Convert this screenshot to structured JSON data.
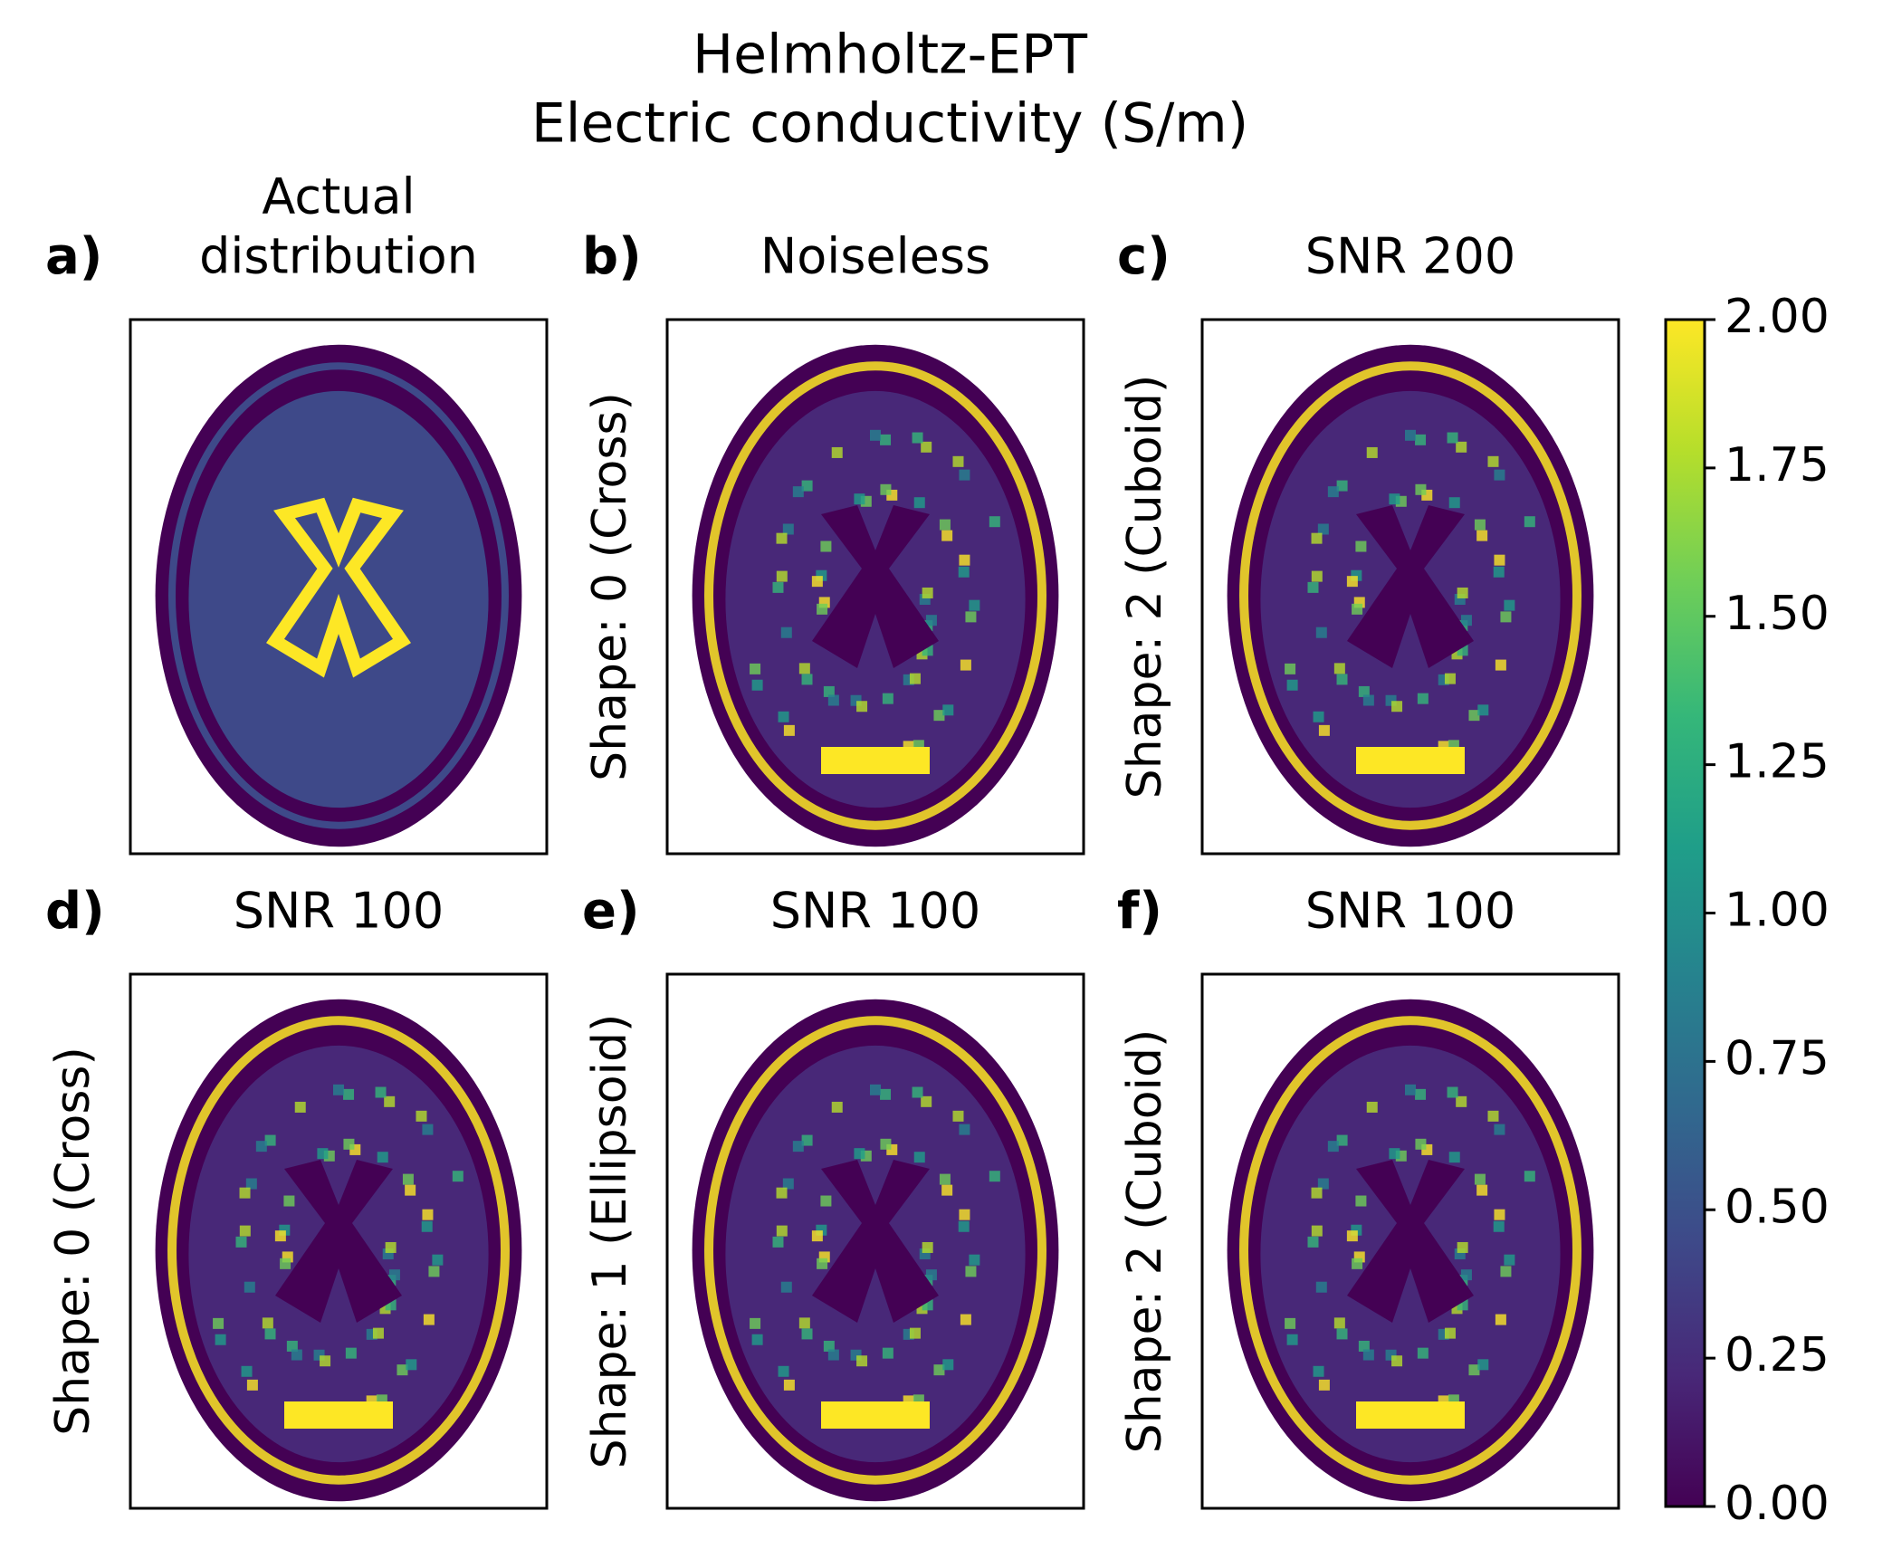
{
  "figure": {
    "title": "Helmholtz-EPT",
    "subtitle": "Electric conductivity (S/m)",
    "panels": [
      {
        "letter": "a)",
        "title": [
          "Actual",
          "distribution"
        ]
      },
      {
        "letter": "b)",
        "title": [
          "Noiseless"
        ],
        "ylabel": "Shape: 0 (Cross)"
      },
      {
        "letter": "c)",
        "title": [
          "SNR 200"
        ],
        "ylabel": "Shape: 2 (Cuboid)"
      },
      {
        "letter": "d)",
        "title": [
          "SNR 100"
        ],
        "ylabel": "Shape: 0 (Cross)"
      },
      {
        "letter": "e)",
        "title": [
          "SNR 100"
        ],
        "ylabel": "Shape: 1 (Ellipsoid)"
      },
      {
        "letter": "f)",
        "title": [
          "SNR 100"
        ],
        "ylabel": "Shape: 2 (Cuboid)"
      }
    ],
    "colorbar": {
      "colormap": "viridis",
      "lim": [
        0,
        2
      ],
      "ticks": [
        {
          "value": 0,
          "label": "0.00"
        },
        0.25,
        {
          "value": 0.5,
          "label": "0.50"
        },
        0.75,
        {
          "value": 1,
          "label": "1.00"
        },
        1.25,
        {
          "value": 1.5,
          "label": "1.50"
        },
        1.75,
        {
          "value": 2,
          "label": "2.00"
        }
      ]
    }
  }
}
